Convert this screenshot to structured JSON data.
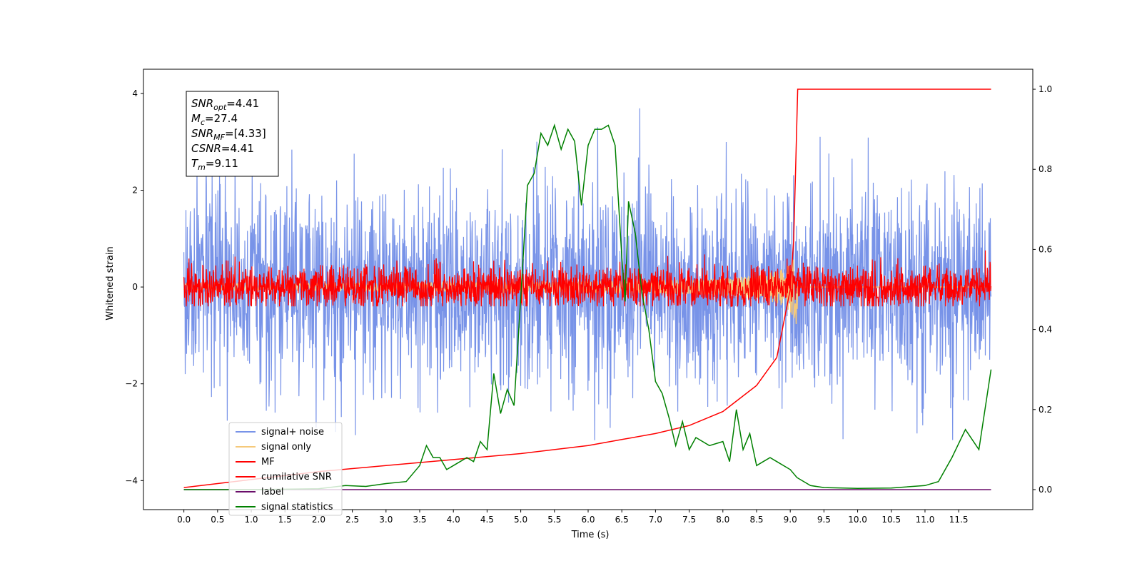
{
  "chart_data": {
    "type": "line",
    "title": "",
    "xlabel": "Time (s)",
    "ylabel": "Whitened strain",
    "xlim": [
      -0.6,
      12.6
    ],
    "ylim": [
      -4.6,
      4.5
    ],
    "ylim_right": [
      -0.05,
      1.05
    ],
    "x_ticks": [
      "0.0",
      "0.5",
      "1.0",
      "1.5",
      "2.0",
      "2.5",
      "3.0",
      "3.5",
      "4.0",
      "4.5",
      "5.0",
      "5.5",
      "6.0",
      "6.5",
      "7.0",
      "7.5",
      "8.0",
      "8.5",
      "9.0",
      "9.5",
      "10.0",
      "10.5",
      "11.0",
      "11.5"
    ],
    "y_ticks_left": [
      "4",
      "2",
      "0",
      "−2",
      "−4"
    ],
    "y_ticks_right": [
      "1.0",
      "0.8",
      "0.6",
      "0.4",
      "0.2",
      "0.0"
    ],
    "grid": false,
    "legend_position": "lower-left",
    "annotation_lines": [
      {
        "base": "SNR",
        "sub": "opt",
        "value": "=4.41"
      },
      {
        "base": "M",
        "sub": "c",
        "value": "=27.4"
      },
      {
        "base": "SNR",
        "sub": "MF",
        "value": "=[4.33]"
      },
      {
        "base": "CSNR",
        "sub": "",
        "value": "=4.41"
      },
      {
        "base": "T",
        "sub": "m",
        "value": "=9.11"
      }
    ],
    "series": [
      {
        "name": "signal+ noise",
        "axis": "left",
        "color": "#7893e8",
        "style": "noise",
        "x_range": [
          0.0,
          11.98
        ],
        "std": 1.0,
        "range": [
          -3.7,
          4.1
        ]
      },
      {
        "name": "signal only",
        "axis": "left",
        "color": "#f5c97a",
        "style": "chirp",
        "x_range": [
          0.0,
          11.98
        ],
        "peak_time": 9.11,
        "peak_amp": 1.0
      },
      {
        "name": "MF",
        "axis": "left",
        "color": "#ff0000",
        "style": "noise",
        "x_range": [
          0.0,
          11.98
        ],
        "std": 0.22,
        "range": [
          -0.4,
          1.0
        ]
      },
      {
        "name": "cumilative SNR",
        "axis": "right",
        "color": "#ff0000",
        "style": "line",
        "x": [
          0.0,
          0.5,
          1.0,
          2.0,
          3.0,
          4.0,
          5.0,
          6.0,
          6.5,
          7.0,
          7.5,
          8.0,
          8.5,
          8.8,
          9.0,
          9.05,
          9.08,
          9.11,
          9.5,
          10.0,
          11.0,
          11.98
        ],
        "y": [
          0.005,
          0.015,
          0.025,
          0.045,
          0.06,
          0.075,
          0.09,
          0.11,
          0.125,
          0.14,
          0.16,
          0.195,
          0.26,
          0.33,
          0.5,
          0.62,
          0.8,
          1.0,
          1.0,
          1.0,
          1.0,
          1.0
        ]
      },
      {
        "name": "label",
        "axis": "right",
        "color": "#6a0d6a",
        "style": "line",
        "x": [
          0.0,
          11.98
        ],
        "y": [
          0.0,
          0.0
        ]
      },
      {
        "name": "signal statistics",
        "axis": "right",
        "color": "#008000",
        "style": "line",
        "x": [
          0.0,
          1.0,
          2.0,
          2.4,
          2.7,
          3.0,
          3.3,
          3.5,
          3.6,
          3.7,
          3.8,
          3.9,
          4.0,
          4.2,
          4.3,
          4.4,
          4.5,
          4.6,
          4.7,
          4.8,
          4.9,
          5.0,
          5.1,
          5.2,
          5.3,
          5.4,
          5.5,
          5.6,
          5.7,
          5.8,
          5.9,
          6.0,
          6.1,
          6.2,
          6.3,
          6.4,
          6.5,
          6.55,
          6.6,
          6.7,
          6.8,
          6.9,
          7.0,
          7.1,
          7.2,
          7.3,
          7.4,
          7.5,
          7.6,
          7.8,
          8.0,
          8.1,
          8.2,
          8.3,
          8.4,
          8.5,
          8.6,
          8.7,
          8.8,
          9.0,
          9.1,
          9.3,
          9.5,
          10.0,
          10.5,
          11.0,
          11.2,
          11.4,
          11.6,
          11.8,
          11.98
        ],
        "y": [
          0.0,
          0.0,
          0.002,
          0.01,
          0.008,
          0.015,
          0.02,
          0.06,
          0.11,
          0.08,
          0.08,
          0.05,
          0.06,
          0.08,
          0.07,
          0.12,
          0.1,
          0.29,
          0.19,
          0.25,
          0.21,
          0.48,
          0.76,
          0.79,
          0.89,
          0.86,
          0.91,
          0.85,
          0.9,
          0.87,
          0.71,
          0.86,
          0.9,
          0.9,
          0.91,
          0.86,
          0.58,
          0.47,
          0.72,
          0.64,
          0.49,
          0.4,
          0.27,
          0.24,
          0.18,
          0.11,
          0.17,
          0.1,
          0.13,
          0.11,
          0.12,
          0.07,
          0.2,
          0.1,
          0.14,
          0.06,
          0.07,
          0.08,
          0.07,
          0.05,
          0.03,
          0.01,
          0.005,
          0.003,
          0.004,
          0.01,
          0.02,
          0.08,
          0.15,
          0.1,
          0.3
        ]
      }
    ]
  }
}
